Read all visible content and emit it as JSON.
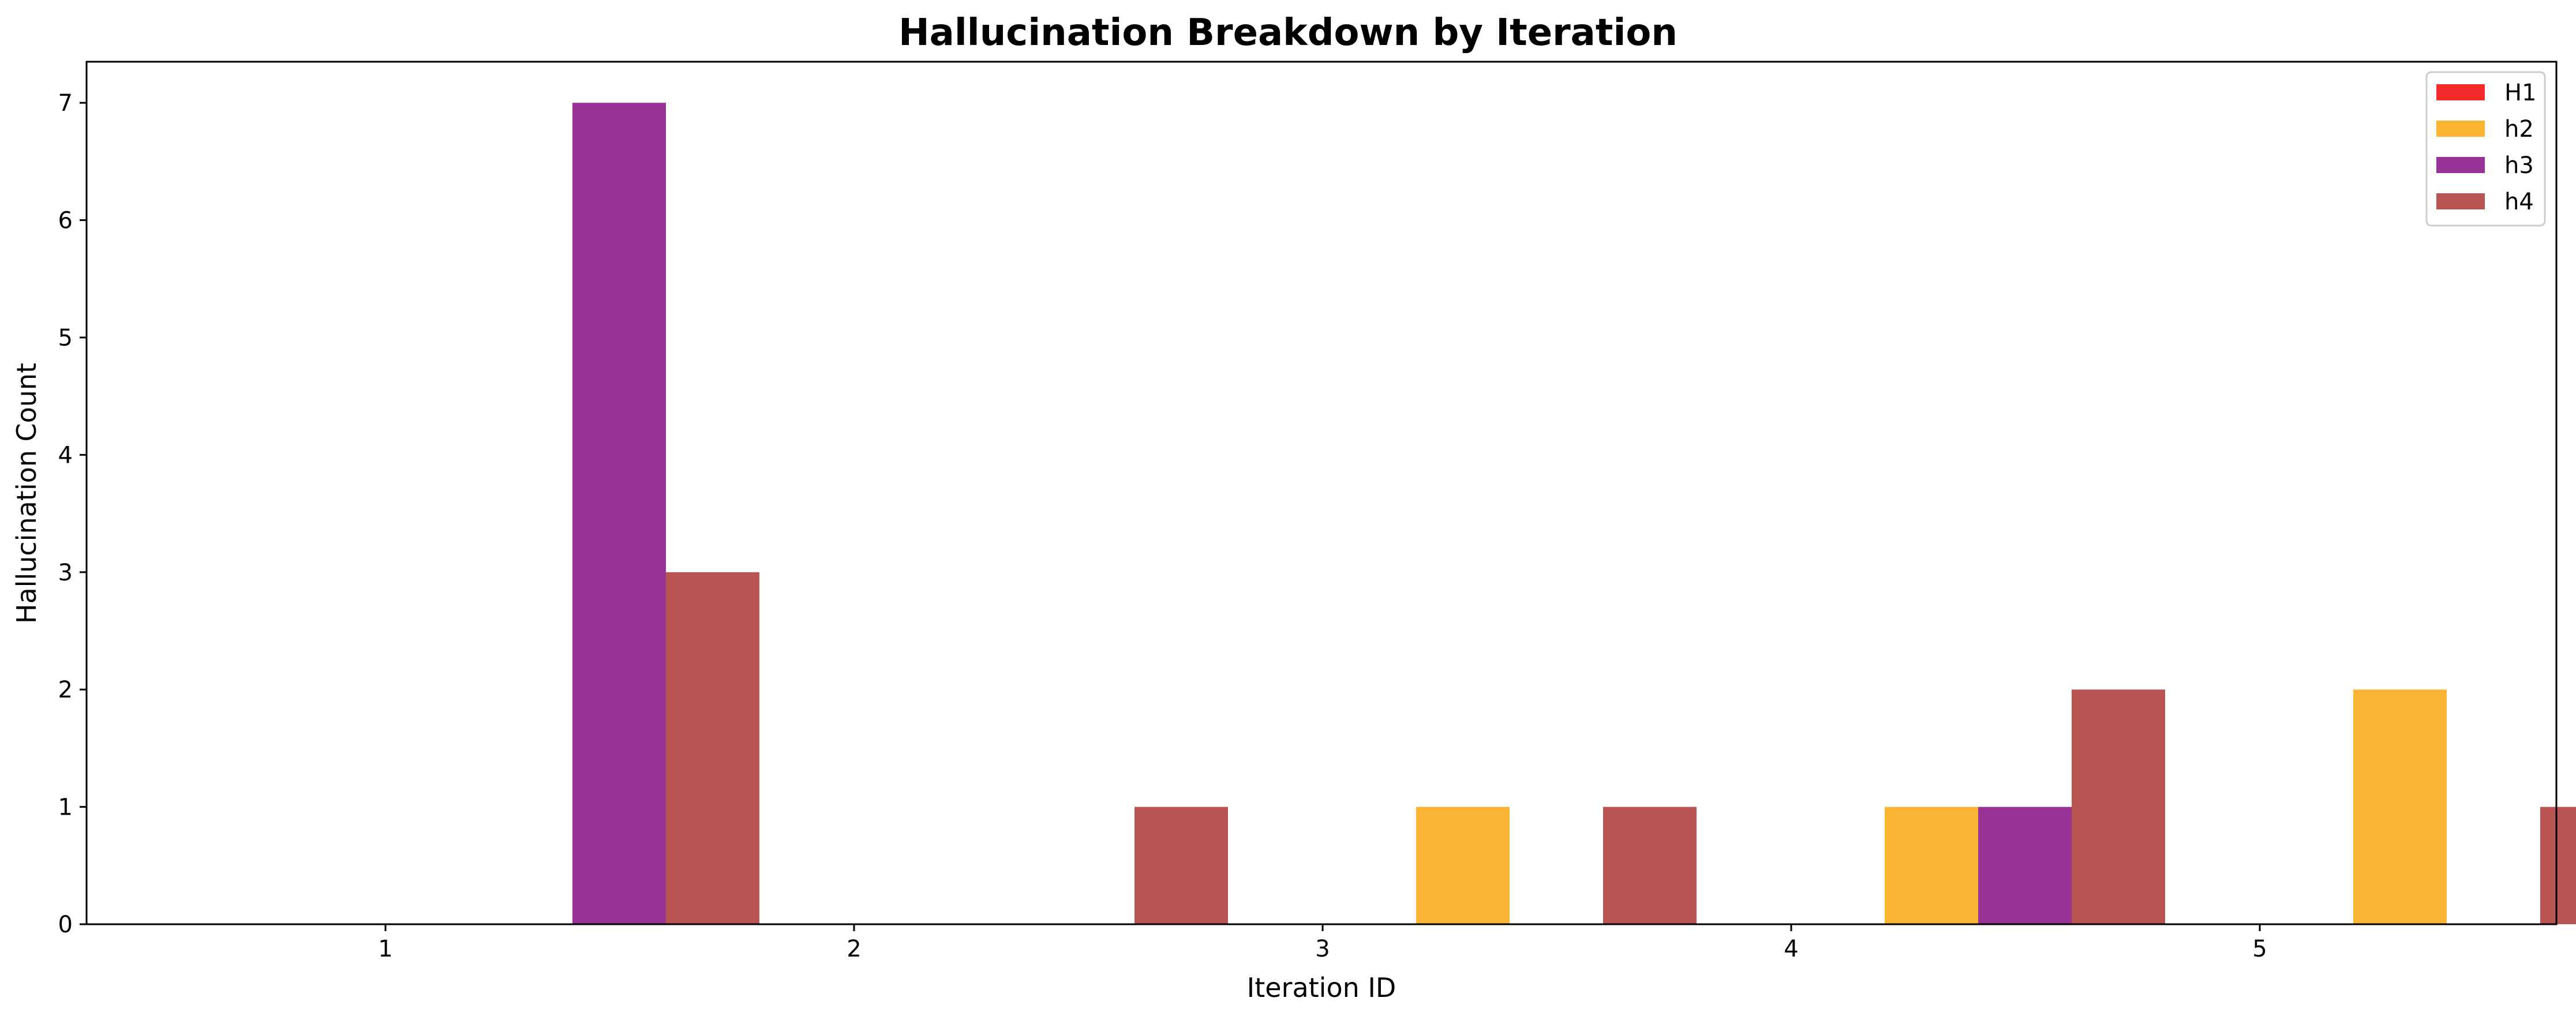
{
  "chart_data": {
    "type": "bar",
    "title": "Hallucination Breakdown by Iteration",
    "xlabel": "Iteration ID",
    "ylabel": "Hallucination Count",
    "categories": [
      "1",
      "2",
      "3",
      "4",
      "5"
    ],
    "ylim": [
      0,
      7.35
    ],
    "yticks": [
      0,
      1,
      2,
      3,
      4,
      5,
      6,
      7
    ],
    "grid": false,
    "legend_position": "top-right",
    "series": [
      {
        "name": "H1",
        "color": "#f52a2a",
        "values": [
          0,
          0,
          0,
          0,
          0
        ]
      },
      {
        "name": "h2",
        "color": "#fbb434",
        "values": [
          0,
          0,
          1,
          1,
          2
        ]
      },
      {
        "name": "h3",
        "color": "#973296",
        "values": [
          7,
          0,
          0,
          1,
          0
        ]
      },
      {
        "name": "h4",
        "color": "#b85452",
        "values": [
          3,
          1,
          1,
          2,
          1
        ]
      }
    ]
  }
}
